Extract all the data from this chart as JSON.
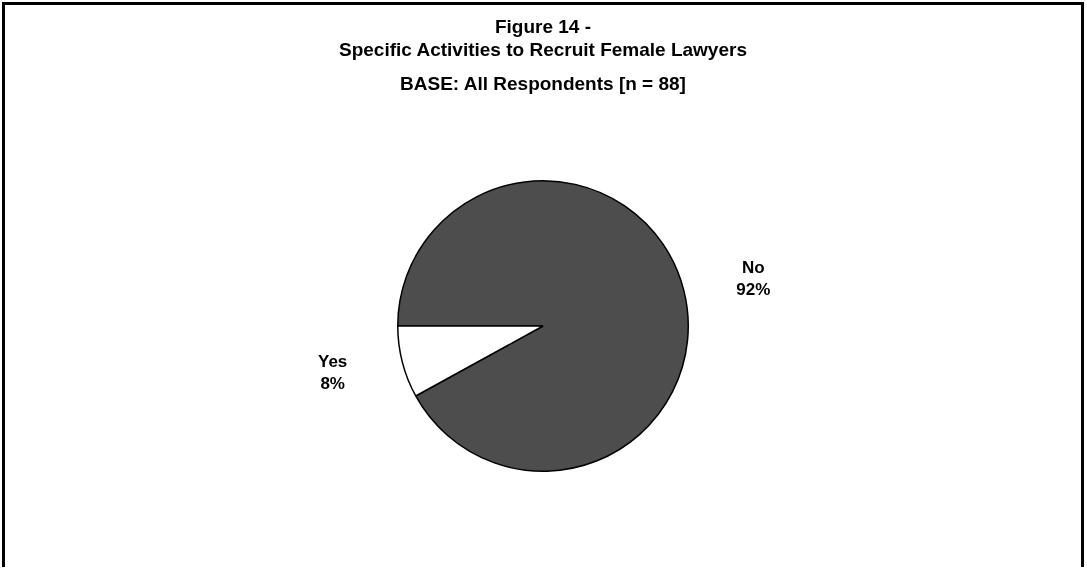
{
  "chart_data": {
    "type": "pie",
    "title": "Figure 14 -\nSpecific Activities to Recruit Female Lawyers",
    "subtitle": "BASE: All Respondents [n = 88]",
    "categories": [
      "No",
      "Yes"
    ],
    "values": [
      92,
      8
    ],
    "colors": [
      "#4d4d4d",
      "#ffffff"
    ],
    "value_labels": [
      "92%",
      "8%"
    ],
    "legend": false
  }
}
